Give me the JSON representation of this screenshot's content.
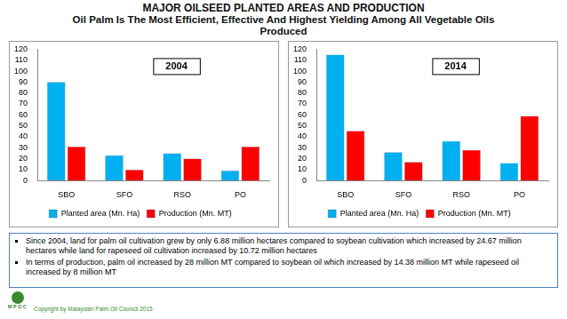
{
  "title": "MAJOR OILSEED PLANTED AREAS AND PRODUCTION",
  "subtitle": "Oil Palm Is The Most Efficient, Effective And Highest Yielding Among All Vegetable Oils Produced",
  "chart_data": [
    {
      "type": "bar",
      "title": "2004",
      "categories": [
        "SBO",
        "SFO",
        "RSO",
        "PO"
      ],
      "series": [
        {
          "name": "Planted area (Mn. Ha)",
          "color": "#00b0f0",
          "values": [
            90,
            23,
            25,
            9
          ]
        },
        {
          "name": "Production (Mn. MT)",
          "color": "#ff0000",
          "values": [
            31,
            10,
            20,
            31
          ]
        }
      ],
      "ylim": [
        0,
        120
      ],
      "yticks": [
        0,
        10,
        20,
        30,
        40,
        50,
        60,
        70,
        80,
        90,
        100,
        110,
        120
      ],
      "grid": false,
      "legend": "bottom"
    },
    {
      "type": "bar",
      "title": "2014",
      "categories": [
        "SBO",
        "SFO",
        "RSO",
        "PO"
      ],
      "series": [
        {
          "name": "Planted area (Mn. Ha)",
          "color": "#00b0f0",
          "values": [
            115,
            26,
            36,
            16
          ]
        },
        {
          "name": "Production (Mn. MT)",
          "color": "#ff0000",
          "values": [
            45.5,
            17,
            28,
            59
          ]
        }
      ],
      "ylim": [
        0,
        120
      ],
      "yticks": [
        0,
        10,
        20,
        30,
        40,
        50,
        60,
        70,
        80,
        90,
        100,
        110,
        120
      ],
      "grid": false,
      "legend": "bottom"
    }
  ],
  "notes": [
    "Since 2004, land for palm oil cultivation grew by only 6.88 million hectares compared to soybean cultivation which increased by 24.67 million hectares while land for rapeseed oil cultivation increased by 10.72 million hectares",
    "In terms of production, palm oil increased by 28 million MT compared to soybean oil which increased by 14.38 million MT while rapeseed oil increased by 8 million MT"
  ],
  "logo_text": "MPOC",
  "footer": "Copyright by Malaysian Palm Oil Council 2015"
}
